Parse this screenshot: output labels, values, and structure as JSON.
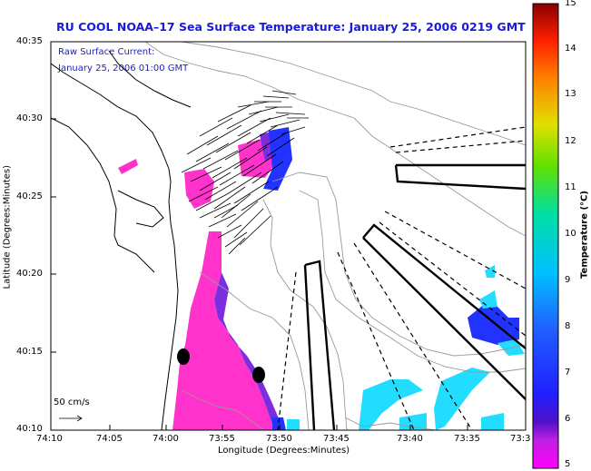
{
  "title": "RU COOL  NOAA–17  Sea Surface Temperature:  January 25, 2006 0219 GMT",
  "subtitle_line1": "Raw Surface Current:",
  "subtitle_line2": "January 25, 2006 01:00 GMT",
  "scale_label": "50 cm/s",
  "y_axis_label": "Latitude (Degrees:Minutes)",
  "x_axis_label": "Longitude (Degrees:Minutes)",
  "colorbar_label": "Temperature (°C)",
  "y_ticks": [
    "40:35",
    "40:30",
    "40:25",
    "40:20",
    "40:15",
    "40:10"
  ],
  "x_ticks": [
    "74:10",
    "74:05",
    "74:00",
    "73:55",
    "73:50",
    "73:45",
    "73:40",
    "73:35",
    "73:3"
  ],
  "colorbar_ticks": [
    "15",
    "14",
    "13",
    "12",
    "11",
    "10",
    "9",
    "8",
    "7",
    "6",
    "5"
  ],
  "colors": {
    "title": "#1a1ad8",
    "cold": "#ff22cc",
    "warm_blue": "#3344ff",
    "cyan": "#22ddff"
  }
}
